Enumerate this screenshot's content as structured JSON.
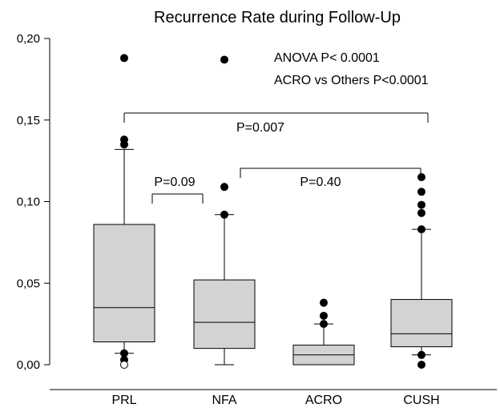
{
  "chart_data": {
    "type": "box",
    "title": "Recurrence Rate during Follow-Up",
    "xlabel": "",
    "ylabel": "",
    "ylim": [
      0,
      0.2
    ],
    "yticks": [
      "0,00",
      "0,05",
      "0,10",
      "0,15",
      "0,20"
    ],
    "ytick_values": [
      0,
      0.05,
      0.1,
      0.15,
      0.2
    ],
    "grid": false,
    "categories": [
      "PRL",
      "NFA",
      "ACRO",
      "CUSH"
    ],
    "boxes": [
      {
        "name": "PRL",
        "whisker_low": 0.007,
        "q1": 0.014,
        "median": 0.035,
        "q3": 0.086,
        "whisker_high": 0.132,
        "outliers_filled": [
          0.188,
          0.138,
          0.135,
          0.007,
          0.003
        ],
        "outliers_open": [
          0.0
        ]
      },
      {
        "name": "NFA",
        "whisker_low": 0.0,
        "q1": 0.01,
        "median": 0.026,
        "q3": 0.052,
        "whisker_high": 0.092,
        "outliers_filled": [
          0.187,
          0.109,
          0.092
        ],
        "outliers_open": []
      },
      {
        "name": "ACRO",
        "whisker_low": 0.0,
        "q1": 0.0,
        "median": 0.006,
        "q3": 0.012,
        "whisker_high": 0.025,
        "outliers_filled": [
          0.038,
          0.03,
          0.025
        ],
        "outliers_open": []
      },
      {
        "name": "CUSH",
        "whisker_low": 0.006,
        "q1": 0.011,
        "median": 0.019,
        "q3": 0.04,
        "whisker_high": 0.083,
        "outliers_filled": [
          0.115,
          0.106,
          0.098,
          0.093,
          0.083,
          0.006,
          0.0
        ],
        "outliers_open": []
      }
    ],
    "annotations": [
      "ANOVA P< 0.0001",
      "ACRO vs Others P<0.0001"
    ],
    "brackets": [
      {
        "from": "PRL",
        "to": "CUSH",
        "label": "P=0.007"
      },
      {
        "from": "PRL",
        "to": "NFA",
        "label": "P=0.09"
      },
      {
        "from": "NFA",
        "to": "CUSH",
        "label": "P=0.40"
      }
    ],
    "colors": {
      "box_fill": "#d3d3d3",
      "stroke": "#000000",
      "background": "#ffffff"
    }
  }
}
